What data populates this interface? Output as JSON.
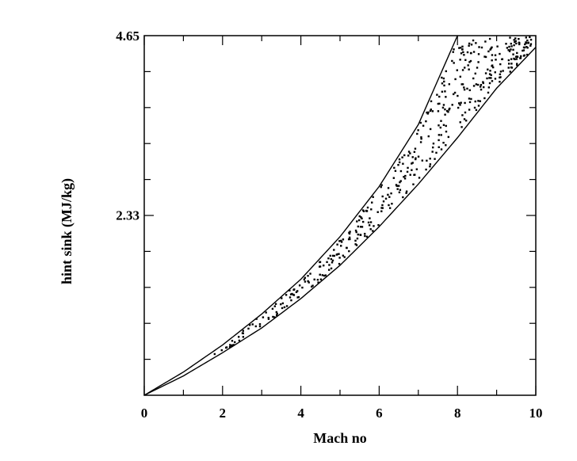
{
  "chart_data": {
    "type": "scatter",
    "title": "",
    "xlabel": "Mach no",
    "ylabel": "hint sink (MJ/kg)",
    "xlim": [
      0,
      10
    ],
    "ylim": [
      0,
      4.65
    ],
    "x_ticks": [
      "0",
      "2",
      "4",
      "6",
      "8",
      "10"
    ],
    "y_ticks": [
      "2.33",
      "4.65"
    ],
    "grid": false,
    "legend": "none",
    "colors": {
      "axes": "#000000",
      "points": "#000000",
      "background": "#ffffff"
    },
    "bounding_curves": [
      {
        "role": "upper",
        "x": [
          0,
          1,
          2,
          3,
          4,
          5,
          6,
          7,
          8
        ],
        "y": [
          0,
          0.3,
          0.65,
          1.05,
          1.5,
          2.05,
          2.7,
          3.5,
          4.65
        ]
      },
      {
        "role": "lower",
        "x": [
          0,
          1,
          2,
          3,
          4,
          5,
          6,
          7,
          8,
          9,
          10
        ],
        "y": [
          0,
          0.25,
          0.55,
          0.87,
          1.25,
          1.68,
          2.18,
          2.73,
          3.33,
          3.97,
          4.5
        ]
      }
    ],
    "scatter_region": {
      "description_values": {
        "x_min": 1.6,
        "x_max": 9.9,
        "y_min": 0.55,
        "y_max": 4.65
      }
    }
  }
}
